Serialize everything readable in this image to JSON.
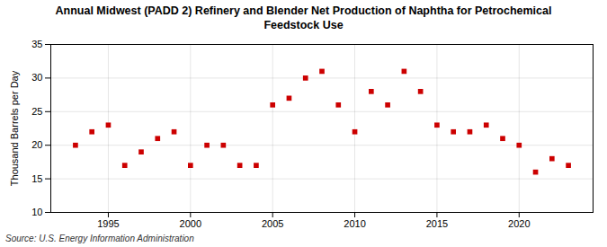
{
  "chart_data": {
    "type": "scatter",
    "title": "Annual Midwest (PADD 2) Refinery and Blender Net Production of Naphtha for Petrochemical\nFeedstock Use",
    "ylabel": "Thousand Barrels per Day",
    "source": "Source: U.S. Energy Information Administration",
    "x": [
      1993,
      1994,
      1995,
      1996,
      1997,
      1998,
      1999,
      2000,
      2001,
      2002,
      2003,
      2004,
      2005,
      2006,
      2007,
      2008,
      2009,
      2010,
      2011,
      2012,
      2013,
      2014,
      2015,
      2016,
      2017,
      2018,
      2019,
      2020,
      2021,
      2022,
      2023
    ],
    "values": [
      20,
      22,
      23,
      17,
      19,
      21,
      22,
      17,
      20,
      20,
      17,
      17,
      26,
      27,
      30,
      31,
      26,
      22,
      28,
      26,
      31,
      28,
      23,
      22,
      22,
      23,
      21,
      20,
      16,
      18,
      17
    ],
    "color": "#cc0000",
    "marker": "square",
    "xlim": [
      1991.5,
      2024.5
    ],
    "xticks": [
      1995,
      2000,
      2005,
      2010,
      2015,
      2020
    ],
    "ylim": [
      10,
      35
    ],
    "yticks": [
      10,
      15,
      20,
      25,
      30,
      35
    ],
    "grid": true
  }
}
